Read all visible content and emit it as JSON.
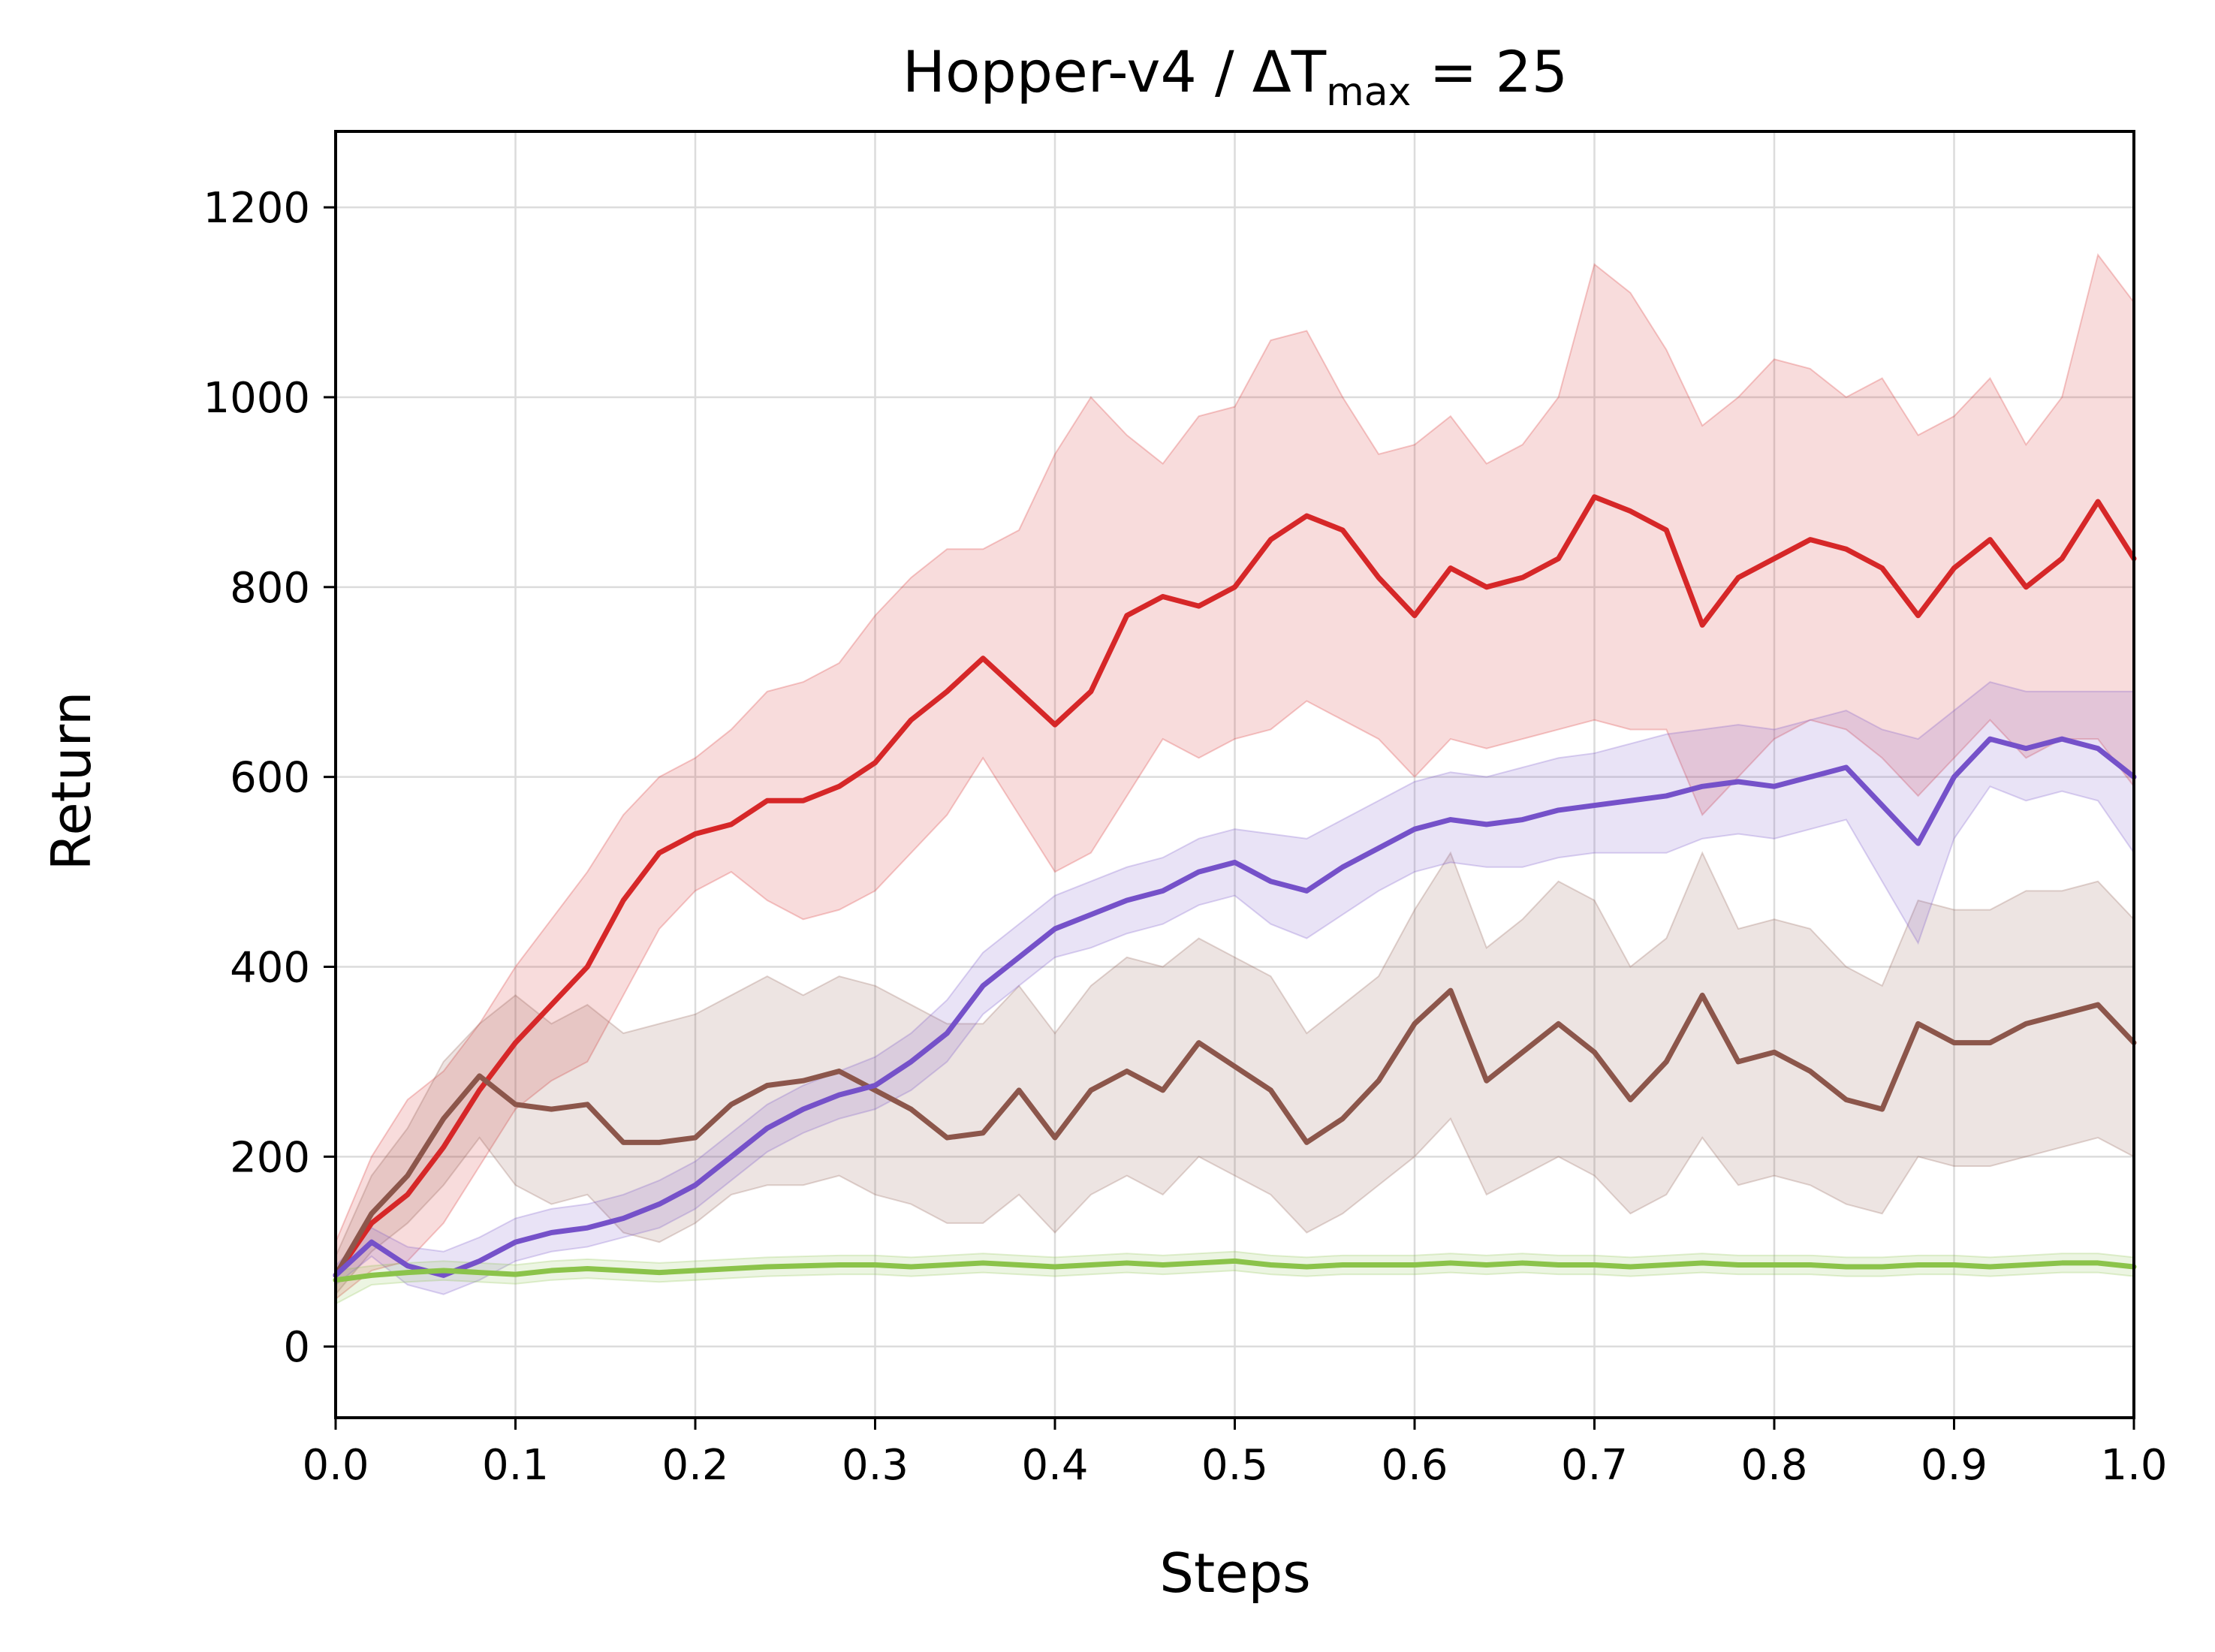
{
  "chart_data": {
    "type": "line",
    "title": {
      "prefix": "Hopper-v4 / ΔT",
      "subscript": "max",
      "suffix": " = 25"
    },
    "xlabel": "Steps",
    "ylabel": "Return",
    "xlim": [
      0.0,
      1.0
    ],
    "ylim": [
      -75,
      1280
    ],
    "xticks": [
      "0.0",
      "0.1",
      "0.2",
      "0.3",
      "0.4",
      "0.5",
      "0.6",
      "0.7",
      "0.8",
      "0.9",
      "1.0"
    ],
    "xtick_values": [
      0.0,
      0.1,
      0.2,
      0.3,
      0.4,
      0.5,
      0.6,
      0.7,
      0.8,
      0.9,
      1.0
    ],
    "yticks": [
      "0",
      "200",
      "400",
      "600",
      "800",
      "1000",
      "1200"
    ],
    "ytick_values": [
      0,
      200,
      400,
      600,
      800,
      1000,
      1200
    ],
    "grid": true,
    "legend": "none",
    "x": [
      0.0,
      0.02,
      0.04,
      0.06,
      0.08,
      0.1,
      0.12,
      0.14,
      0.16,
      0.18,
      0.2,
      0.22,
      0.24,
      0.26,
      0.28,
      0.3,
      0.32,
      0.34,
      0.36,
      0.38,
      0.4,
      0.42,
      0.44,
      0.46,
      0.48,
      0.5,
      0.52,
      0.54,
      0.56,
      0.58,
      0.6,
      0.62,
      0.64,
      0.66,
      0.68,
      0.7,
      0.72,
      0.74,
      0.76,
      0.78,
      0.8,
      0.82,
      0.84,
      0.86,
      0.88,
      0.9,
      0.92,
      0.94,
      0.96,
      0.98,
      1.0
    ],
    "series": [
      {
        "color": "#d62728",
        "values": [
          75,
          130,
          160,
          210,
          270,
          320,
          360,
          400,
          470,
          520,
          540,
          550,
          575,
          575,
          590,
          615,
          660,
          690,
          725,
          690,
          655,
          690,
          770,
          790,
          780,
          800,
          850,
          875,
          860,
          810,
          770,
          820,
          800,
          810,
          830,
          895,
          880,
          860,
          760,
          810,
          830,
          850,
          840,
          820,
          770,
          820,
          850,
          800,
          830,
          890,
          830
        ],
        "upper": [
          110,
          200,
          260,
          290,
          340,
          400,
          450,
          500,
          560,
          600,
          620,
          650,
          690,
          700,
          720,
          770,
          810,
          840,
          840,
          860,
          940,
          1000,
          960,
          930,
          980,
          990,
          1060,
          1070,
          1000,
          940,
          950,
          980,
          930,
          950,
          1000,
          1140,
          1110,
          1050,
          970,
          1000,
          1040,
          1030,
          1000,
          1020,
          960,
          980,
          1020,
          950,
          1000,
          1150,
          1100
        ],
        "lower": [
          50,
          80,
          90,
          130,
          190,
          250,
          280,
          300,
          370,
          440,
          480,
          500,
          470,
          450,
          460,
          480,
          520,
          560,
          620,
          560,
          500,
          520,
          580,
          640,
          620,
          640,
          650,
          680,
          660,
          640,
          600,
          640,
          630,
          640,
          650,
          660,
          650,
          650,
          560,
          600,
          640,
          660,
          650,
          620,
          580,
          620,
          660,
          620,
          640,
          640,
          590
        ]
      },
      {
        "color": "#8c564b",
        "values": [
          75,
          140,
          180,
          240,
          285,
          255,
          250,
          255,
          215,
          215,
          220,
          255,
          275,
          280,
          290,
          270,
          250,
          220,
          225,
          270,
          220,
          270,
          290,
          270,
          320,
          295,
          270,
          215,
          240,
          280,
          340,
          375,
          280,
          310,
          340,
          310,
          260,
          300,
          370,
          300,
          310,
          290,
          260,
          250,
          340,
          320,
          320,
          340,
          350,
          360,
          320
        ],
        "upper": [
          95,
          180,
          230,
          300,
          340,
          370,
          340,
          360,
          330,
          340,
          350,
          370,
          390,
          370,
          390,
          380,
          360,
          340,
          340,
          380,
          330,
          380,
          410,
          400,
          430,
          410,
          390,
          330,
          360,
          390,
          460,
          520,
          420,
          450,
          490,
          470,
          400,
          430,
          520,
          440,
          450,
          440,
          400,
          380,
          470,
          460,
          460,
          480,
          480,
          490,
          450
        ],
        "lower": [
          55,
          100,
          130,
          170,
          220,
          170,
          150,
          160,
          120,
          110,
          130,
          160,
          170,
          170,
          180,
          160,
          150,
          130,
          130,
          160,
          120,
          160,
          180,
          160,
          200,
          180,
          160,
          120,
          140,
          170,
          200,
          240,
          160,
          180,
          200,
          180,
          140,
          160,
          220,
          170,
          180,
          170,
          150,
          140,
          200,
          190,
          190,
          200,
          210,
          220,
          200
        ]
      },
      {
        "color": "#7551c9",
        "values": [
          75,
          110,
          85,
          75,
          90,
          110,
          120,
          125,
          135,
          150,
          170,
          200,
          230,
          250,
          265,
          275,
          300,
          330,
          380,
          410,
          440,
          455,
          470,
          480,
          500,
          510,
          490,
          480,
          505,
          525,
          545,
          555,
          550,
          555,
          565,
          570,
          575,
          580,
          590,
          595,
          590,
          600,
          610,
          570,
          530,
          600,
          640,
          630,
          640,
          630,
          600
        ],
        "upper": [
          85,
          125,
          105,
          100,
          115,
          135,
          145,
          150,
          160,
          175,
          195,
          225,
          255,
          275,
          290,
          305,
          330,
          365,
          415,
          445,
          475,
          490,
          505,
          515,
          535,
          545,
          540,
          535,
          555,
          575,
          595,
          605,
          600,
          610,
          620,
          625,
          635,
          645,
          650,
          655,
          650,
          660,
          670,
          650,
          640,
          670,
          700,
          690,
          690,
          690,
          690
        ],
        "lower": [
          65,
          95,
          65,
          55,
          70,
          90,
          100,
          105,
          115,
          125,
          145,
          175,
          205,
          225,
          240,
          250,
          270,
          300,
          350,
          380,
          410,
          420,
          435,
          445,
          465,
          475,
          445,
          430,
          455,
          480,
          500,
          510,
          505,
          505,
          515,
          520,
          520,
          520,
          535,
          540,
          535,
          545,
          555,
          490,
          425,
          535,
          590,
          575,
          585,
          575,
          520
        ]
      },
      {
        "color": "#8bc34a",
        "values": [
          70,
          75,
          78,
          80,
          78,
          76,
          80,
          82,
          80,
          78,
          80,
          82,
          84,
          85,
          86,
          86,
          84,
          86,
          88,
          86,
          84,
          86,
          88,
          86,
          88,
          90,
          86,
          84,
          86,
          86,
          86,
          88,
          86,
          88,
          86,
          86,
          84,
          86,
          88,
          86,
          86,
          86,
          84,
          84,
          86,
          86,
          84,
          86,
          88,
          88,
          84
        ],
        "upper": [
          80,
          85,
          88,
          90,
          88,
          86,
          90,
          92,
          90,
          88,
          90,
          92,
          94,
          95,
          96,
          96,
          94,
          96,
          98,
          96,
          94,
          96,
          98,
          96,
          98,
          100,
          96,
          94,
          96,
          96,
          96,
          98,
          96,
          98,
          96,
          96,
          94,
          96,
          98,
          96,
          96,
          96,
          94,
          94,
          96,
          96,
          94,
          96,
          98,
          98,
          94
        ],
        "lower": [
          45,
          65,
          68,
          70,
          68,
          66,
          70,
          72,
          70,
          68,
          70,
          72,
          74,
          75,
          76,
          76,
          74,
          76,
          78,
          76,
          74,
          76,
          78,
          76,
          78,
          80,
          76,
          74,
          76,
          76,
          76,
          78,
          76,
          78,
          76,
          76,
          74,
          76,
          78,
          76,
          76,
          76,
          74,
          74,
          76,
          76,
          74,
          76,
          78,
          78,
          74
        ]
      }
    ]
  }
}
